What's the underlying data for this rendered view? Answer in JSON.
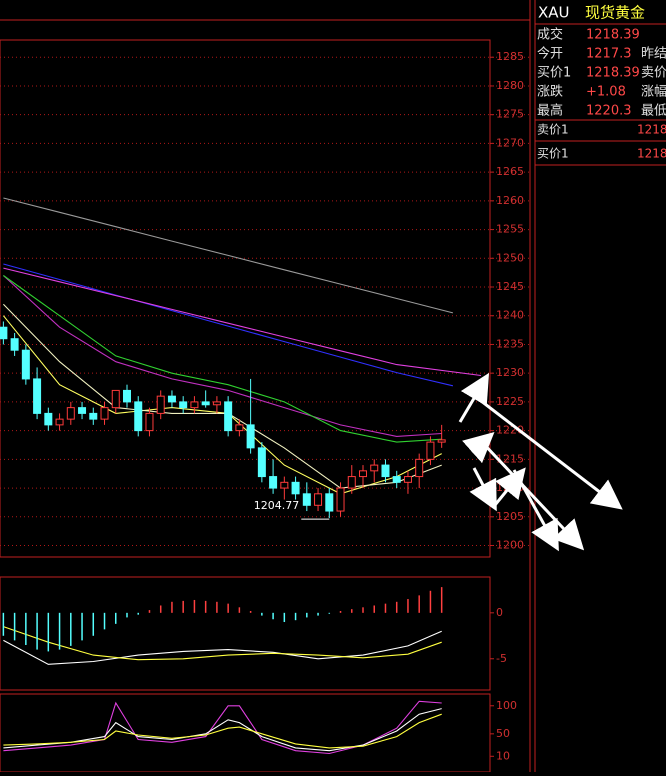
{
  "quote_panel": {
    "symbol": "XAU",
    "name": "现货黄金",
    "rows": [
      {
        "label": "成交",
        "value": "1218.39"
      },
      {
        "label": "今开",
        "value": "1217.3",
        "label2": "昨结"
      },
      {
        "label": "买价1",
        "value": "1218.39",
        "label2": "卖价"
      },
      {
        "label": "涨跌",
        "value": "+1.08",
        "label2": "涨幅"
      },
      {
        "label": "最高",
        "value": "1220.3",
        "label2": "最低"
      }
    ],
    "book": [
      {
        "label": "卖价1",
        "value": "1218"
      },
      {
        "label": "买价1",
        "value": "1218"
      }
    ]
  },
  "chart_data": [
    {
      "type": "candlestick",
      "x": [
        0,
        1,
        2,
        3,
        4,
        5,
        6,
        7,
        8,
        9,
        10,
        11,
        12,
        13,
        14,
        15,
        16,
        17,
        18,
        19,
        20,
        21,
        22,
        23,
        24,
        25,
        26,
        27,
        28,
        29,
        30,
        31,
        32,
        33,
        34,
        35,
        36,
        37,
        38,
        39
      ],
      "open": [
        1238,
        1236,
        1234,
        1229,
        1223,
        1221,
        1222,
        1224,
        1223,
        1222,
        1224,
        1227,
        1225,
        1220,
        1223,
        1226,
        1225,
        1224,
        1225,
        1224.5,
        1225,
        1220,
        1221,
        1217,
        1212,
        1210,
        1211,
        1209,
        1207,
        1209,
        1206,
        1210,
        1212,
        1213,
        1214,
        1212,
        1211,
        1212,
        1215,
        1218
      ],
      "high": [
        1239,
        1237,
        1235,
        1231,
        1224,
        1223,
        1225,
        1225,
        1224,
        1225,
        1227,
        1228,
        1226,
        1224,
        1227,
        1227,
        1226,
        1226,
        1227,
        1226,
        1226,
        1222,
        1229,
        1218,
        1215,
        1212,
        1212,
        1211,
        1210,
        1210,
        1211,
        1214,
        1214,
        1215,
        1215,
        1213,
        1213,
        1216,
        1219,
        1221
      ],
      "low": [
        1235,
        1233,
        1228,
        1222,
        1220,
        1220,
        1221,
        1222,
        1221,
        1221,
        1223,
        1224,
        1219,
        1219,
        1222,
        1224,
        1223,
        1223,
        1224,
        1223,
        1219,
        1219,
        1216,
        1211,
        1209,
        1208,
        1208,
        1206,
        1206,
        1204.77,
        1205,
        1209,
        1210,
        1211,
        1211,
        1210,
        1209,
        1210,
        1214,
        1217
      ],
      "close": [
        1236,
        1234,
        1229,
        1223,
        1221,
        1222,
        1224,
        1223,
        1222,
        1224,
        1227,
        1225,
        1220,
        1223,
        1226,
        1225,
        1224,
        1225,
        1224.5,
        1225,
        1220,
        1221,
        1217,
        1212,
        1210,
        1211,
        1209,
        1207,
        1209,
        1206,
        1210,
        1212,
        1213,
        1214,
        1212,
        1211,
        1212,
        1215,
        1218,
        1218.39
      ],
      "up_color": "#ff3b3b",
      "down_color": "#54ffff",
      "xlim": [
        -0.3,
        43.3
      ],
      "ylim": [
        1198,
        1288
      ],
      "yticks": [
        1200,
        1205,
        1210,
        1215,
        1220,
        1225,
        1230,
        1235,
        1240,
        1245,
        1250,
        1255,
        1260,
        1265,
        1270,
        1275,
        1280,
        1285
      ],
      "grid": true,
      "lines": [
        {
          "color": "#9a9a9a",
          "x": [
            0,
            5,
            10,
            15,
            20,
            25,
            30,
            35,
            40
          ],
          "values": [
            1260.5,
            1258,
            1255.5,
            1253,
            1250.5,
            1248,
            1245.5,
            1243,
            1240.5
          ]
        },
        {
          "color": "#3030ff",
          "x": [
            0,
            5,
            10,
            15,
            20,
            25,
            30,
            35,
            40
          ],
          "values": [
            1249,
            1246.3,
            1243.6,
            1240.9,
            1238.2,
            1235.5,
            1232.8,
            1230.1,
            1227.8
          ]
        },
        {
          "color": "#e040e0",
          "x": [
            0,
            5,
            10,
            15,
            20,
            25,
            30,
            35,
            42.5
          ],
          "values": [
            1248.3,
            1245.9,
            1243.5,
            1241.1,
            1238.7,
            1236.3,
            1233.9,
            1231.5,
            1229.6
          ]
        },
        {
          "color": "#c030c0",
          "x": [
            0,
            5,
            10,
            15,
            20,
            25,
            30,
            35,
            39
          ],
          "values": [
            1247,
            1238,
            1232,
            1229,
            1227,
            1224,
            1221,
            1219,
            1219.5
          ]
        },
        {
          "color": "#30d030",
          "x": [
            0,
            5,
            10,
            15,
            20,
            25,
            30,
            35,
            39
          ],
          "values": [
            1247,
            1240,
            1233,
            1230,
            1228,
            1225,
            1220,
            1218,
            1218.5
          ]
        },
        {
          "color": "#ffff60",
          "x": [
            0,
            5,
            10,
            15,
            20,
            25,
            30,
            35,
            39
          ],
          "values": [
            1240,
            1228,
            1223,
            1224,
            1223,
            1214,
            1209,
            1212,
            1216
          ]
        },
        {
          "color": "#f0f0c0",
          "x": [
            0,
            5,
            10,
            15,
            20,
            25,
            30,
            35,
            39
          ],
          "values": [
            1242,
            1232,
            1224,
            1223,
            1223,
            1217,
            1210,
            1211,
            1214
          ]
        }
      ]
    },
    {
      "type": "macd",
      "x": [
        0,
        1,
        2,
        3,
        4,
        5,
        6,
        7,
        8,
        9,
        10,
        11,
        12,
        13,
        14,
        15,
        16,
        17,
        18,
        19,
        20,
        21,
        22,
        23,
        24,
        25,
        26,
        27,
        28,
        29,
        30,
        31,
        32,
        33,
        34,
        35,
        36,
        37,
        38,
        39
      ],
      "values": [
        -2.5,
        -3,
        -3.5,
        -4,
        -4.2,
        -4,
        -3.6,
        -3,
        -2.5,
        -1.8,
        -1.2,
        -0.5,
        -0.2,
        0.3,
        0.8,
        1.2,
        1.3,
        1.4,
        1.3,
        1.2,
        1,
        0.6,
        0.2,
        -0.3,
        -0.7,
        -1,
        -0.8,
        -0.5,
        -0.3,
        -0.1,
        0.2,
        0.4,
        0.6,
        0.8,
        1,
        1.2,
        1.5,
        1.9,
        2.4,
        2.8
      ],
      "up_color": "#ff4040",
      "down_color": "#54ffff",
      "xlim": [
        -0.3,
        43.3
      ],
      "ylim": [
        -8.4,
        3.9
      ],
      "yticks": [
        0,
        -5
      ],
      "grid": false,
      "lines": [
        {
          "color": "#ffffff",
          "x": [
            0,
            4,
            8,
            12,
            16,
            20,
            24,
            28,
            32,
            36,
            39
          ],
          "values": [
            -3,
            -5.6,
            -5.3,
            -4.6,
            -4.2,
            -4,
            -4.3,
            -5,
            -4.6,
            -3.6,
            -2
          ]
        },
        {
          "color": "#ffff40",
          "x": [
            0,
            4,
            8,
            12,
            16,
            20,
            24,
            28,
            32,
            36,
            39
          ],
          "values": [
            -1.5,
            -3.2,
            -4.6,
            -5.1,
            -5,
            -4.6,
            -4.4,
            -4.6,
            -4.9,
            -4.5,
            -3.2
          ]
        }
      ]
    },
    {
      "type": "line",
      "xlim": [
        -0.3,
        43.3
      ],
      "ylim": [
        -18,
        121
      ],
      "yticks": [
        100,
        50,
        10
      ],
      "grid": false,
      "lines": [
        {
          "color": "#e040e0",
          "x": [
            0,
            3,
            6,
            9,
            10,
            12,
            15,
            18,
            20,
            21,
            23,
            26,
            29,
            32,
            35,
            37,
            39
          ],
          "values": [
            20,
            25,
            30,
            40,
            105,
            40,
            35,
            45,
            100,
            100,
            40,
            20,
            15,
            30,
            60,
            108,
            105
          ]
        },
        {
          "color": "#ffffff",
          "x": [
            0,
            3,
            6,
            9,
            10,
            12,
            15,
            18,
            20,
            21,
            23,
            26,
            29,
            32,
            35,
            37,
            39
          ],
          "values": [
            25,
            30,
            35,
            45,
            70,
            45,
            40,
            50,
            75,
            70,
            45,
            25,
            20,
            30,
            55,
            85,
            95
          ]
        },
        {
          "color": "#ffff40",
          "x": [
            0,
            3,
            6,
            9,
            10,
            12,
            15,
            18,
            20,
            21,
            23,
            26,
            29,
            32,
            35,
            37,
            39
          ],
          "values": [
            30,
            32,
            35,
            40,
            55,
            48,
            42,
            48,
            60,
            62,
            50,
            32,
            25,
            28,
            45,
            70,
            85
          ]
        }
      ]
    }
  ]
}
